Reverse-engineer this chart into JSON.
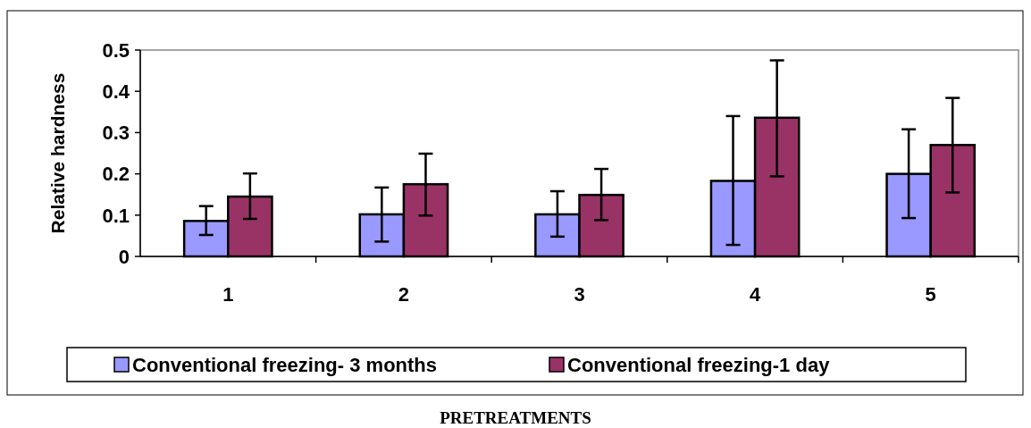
{
  "chart_data": {
    "type": "bar",
    "annotations": [
      "PRETREATMENTS"
    ],
    "ylabel": "Relative hardness",
    "categories": [
      "1",
      "2",
      "3",
      "4",
      "5"
    ],
    "series": [
      {
        "name": "Conventional freezing- 3 months",
        "color": "#9999ff",
        "values": [
          0.086,
          0.102,
          0.102,
          0.183,
          0.2
        ],
        "errors": [
          [
            0.052,
            0.122
          ],
          [
            0.036,
            0.167
          ],
          [
            0.048,
            0.158
          ],
          [
            0.028,
            0.34
          ],
          [
            0.093,
            0.308
          ]
        ]
      },
      {
        "name": "Conventional freezing-1 day",
        "color": "#993366",
        "values": [
          0.145,
          0.175,
          0.149,
          0.336,
          0.27
        ],
        "errors": [
          [
            0.091,
            0.201
          ],
          [
            0.099,
            0.249
          ],
          [
            0.088,
            0.212
          ],
          [
            0.194,
            0.475
          ],
          [
            0.155,
            0.384
          ]
        ]
      }
    ],
    "ylim": [
      0,
      0.5
    ],
    "yticks": [
      0,
      0.1,
      0.2,
      0.3,
      0.4,
      0.5
    ],
    "legend": "bottom"
  }
}
